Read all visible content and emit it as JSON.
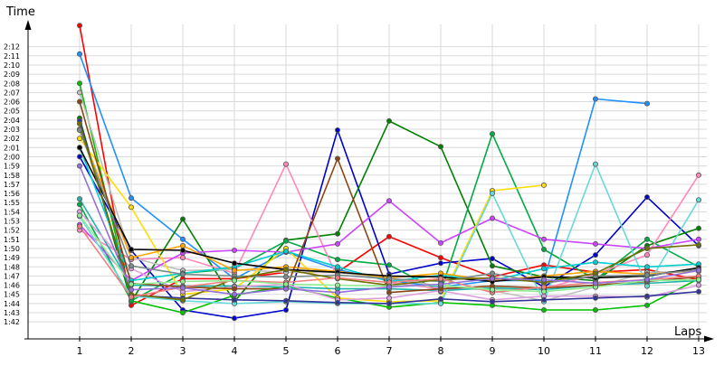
{
  "chart_data": {
    "type": "line",
    "xlabel": "Laps",
    "ylabel": "Time",
    "x": [
      1,
      2,
      3,
      4,
      5,
      6,
      7,
      8,
      9,
      10,
      11,
      12,
      13
    ],
    "x_ticks": [
      "1",
      "2",
      "3",
      "4",
      "5",
      "6",
      "7",
      "8",
      "9",
      "10",
      "11",
      "12",
      "13"
    ],
    "y_ticks": [
      "1:42",
      "1:43",
      "1:44",
      "1:45",
      "1:46",
      "1:47",
      "1:48",
      "1:49",
      "1:50",
      "1:51",
      "1:52",
      "1:53",
      "1:54",
      "1:55",
      "1:56",
      "1:57",
      "1:58",
      "1:59",
      "2:00",
      "2:01",
      "2:02",
      "2:03",
      "2:04",
      "2:05",
      "2:06",
      "2:07",
      "2:08",
      "2:09",
      "2:10",
      "2:11",
      "2:12"
    ],
    "y_unit": "seconds",
    "ylim": [
      100.5,
      134.0
    ],
    "grid": true,
    "legend": "none",
    "series": [
      {
        "color": "#ff0000",
        "values": [
          134.3,
          103.8,
          106.7,
          106.7,
          107.4,
          107.4,
          111.3,
          109.0,
          106.9,
          108.2,
          107.4,
          107.7,
          106.6
        ]
      },
      {
        "color": "#1e90ff",
        "values": [
          131.2,
          115.5,
          111.0,
          106.7,
          109.6,
          107.7,
          106.5,
          105.8,
          106.5,
          106.5,
          126.3,
          125.8,
          null
        ]
      },
      {
        "color": "#0000cd",
        "values": [
          120.0,
          109.8,
          103.3,
          102.4,
          103.3,
          122.9,
          107.2,
          108.4,
          108.9,
          105.8,
          109.3,
          115.6,
          110.3
        ]
      },
      {
        "color": "#008000",
        "values": [
          124.2,
          104.2,
          113.2,
          104.2,
          110.9,
          111.6,
          123.9,
          121.1,
          108.1,
          106.9,
          106.5,
          110.3,
          112.2
        ]
      },
      {
        "color": "#00c000",
        "values": [
          128.0,
          104.3,
          103.0,
          104.9,
          105.9,
          104.6,
          103.6,
          104.1,
          103.8,
          103.3,
          103.3,
          103.8,
          106.7
        ]
      },
      {
        "color": "#00aa44",
        "values": [
          114.8,
          104.3,
          107.3,
          107.8,
          110.8,
          108.8,
          108.2,
          105.3,
          122.5,
          109.9,
          106.6,
          111.0,
          108.0
        ]
      },
      {
        "color": "#ff88bb",
        "values": [
          112.0,
          108.8,
          109.0,
          107.3,
          119.2,
          106.8,
          106.3,
          105.6,
          105.6,
          105.6,
          107.2,
          109.3,
          118.0
        ]
      },
      {
        "color": "#c0c0c0",
        "values": [
          127.0,
          109.0,
          107.6,
          107.7,
          107.4,
          107.4,
          106.7,
          105.9,
          105.4,
          104.3,
          105.8,
          107.4,
          107.5
        ]
      },
      {
        "color": "#cc44ff",
        "values": [
          112.6,
          106.5,
          109.5,
          109.8,
          109.6,
          110.5,
          115.2,
          110.6,
          113.3,
          111.0,
          110.5,
          110.0,
          111.0
        ]
      },
      {
        "color": "#ffdd00",
        "values": [
          122.0,
          114.5,
          105.0,
          105.6,
          110.0,
          104.6,
          104.2,
          104.3,
          116.3,
          116.9,
          null,
          null,
          null
        ]
      },
      {
        "color": "#20b2aa",
        "values": [
          115.4,
          106.0,
          105.9,
          105.9,
          105.8,
          105.6,
          105.6,
          105.4,
          105.7,
          105.5,
          106.0,
          106.2,
          106.5
        ]
      },
      {
        "color": "#dda0dd",
        "values": [
          114.0,
          107.8,
          105.3,
          105.8,
          106.1,
          104.4,
          104.6,
          105.4,
          104.4,
          104.8,
          104.8,
          104.7,
          106.0
        ]
      },
      {
        "color": "#66d9d9",
        "values": [
          113.5,
          104.8,
          104.3,
          104.0,
          104.2,
          104.0,
          104.0,
          104.0,
          116.0,
          104.2,
          119.2,
          105.9,
          115.3
        ]
      },
      {
        "color": "#00ced1",
        "values": [
          121.0,
          106.5,
          107.3,
          108.0,
          109.7,
          108.0,
          106.4,
          107.1,
          106.5,
          107.8,
          108.5,
          108.0,
          108.3
        ]
      },
      {
        "color": "#ffa500",
        "values": [
          123.0,
          109.0,
          110.3,
          107.6,
          108.0,
          107.5,
          106.8,
          107.3,
          106.5,
          107.0,
          107.5,
          107.2,
          107.6
        ]
      },
      {
        "color": "#8b4513",
        "values": [
          126.0,
          106.2,
          105.8,
          105.6,
          105.6,
          119.8,
          105.2,
          105.6,
          105.9,
          105.7,
          106.0,
          106.4,
          106.9
        ]
      },
      {
        "color": "#000000",
        "values": [
          121.0,
          109.9,
          109.8,
          108.4,
          107.7,
          107.4,
          107.0,
          106.9,
          106.4,
          106.9,
          106.8,
          107.0,
          107.9
        ]
      },
      {
        "color": "#333399",
        "values": [
          123.9,
          104.9,
          104.6,
          104.4,
          104.3,
          104.1,
          104.0,
          104.5,
          104.2,
          104.4,
          104.6,
          104.8,
          105.3
        ]
      },
      {
        "color": "#7a8b8b",
        "values": [
          122.9,
          108.1,
          107.2,
          107.0,
          106.9,
          107.1,
          106.7,
          106.4,
          107.3,
          106.2,
          107.0,
          107.1,
          107.7
        ]
      },
      {
        "color": "#6f6f00",
        "values": [
          123.6,
          105.0,
          104.4,
          106.7,
          107.7,
          106.7,
          106.0,
          106.6,
          106.8,
          106.3,
          107.3,
          110.0,
          110.4
        ]
      },
      {
        "color": "#f08080",
        "values": [
          112.4,
          104.7,
          105.8,
          106.5,
          106.3,
          106.8,
          106.3,
          106.7,
          105.2,
          105.8,
          106.3,
          106.6,
          107.0
        ]
      },
      {
        "color": "#90ee90",
        "values": [
          113.6,
          106.1,
          106.4,
          106.5,
          106.1,
          106.0,
          105.9,
          106.0,
          105.5,
          105.3,
          105.8,
          106.5,
          106.6
        ]
      },
      {
        "color": "#9370db",
        "values": [
          119.0,
          105.5,
          105.7,
          105.0,
          105.6,
          105.2,
          105.8,
          106.1,
          106.7,
          106.6,
          106.2,
          106.6,
          107.6
        ]
      }
    ]
  }
}
